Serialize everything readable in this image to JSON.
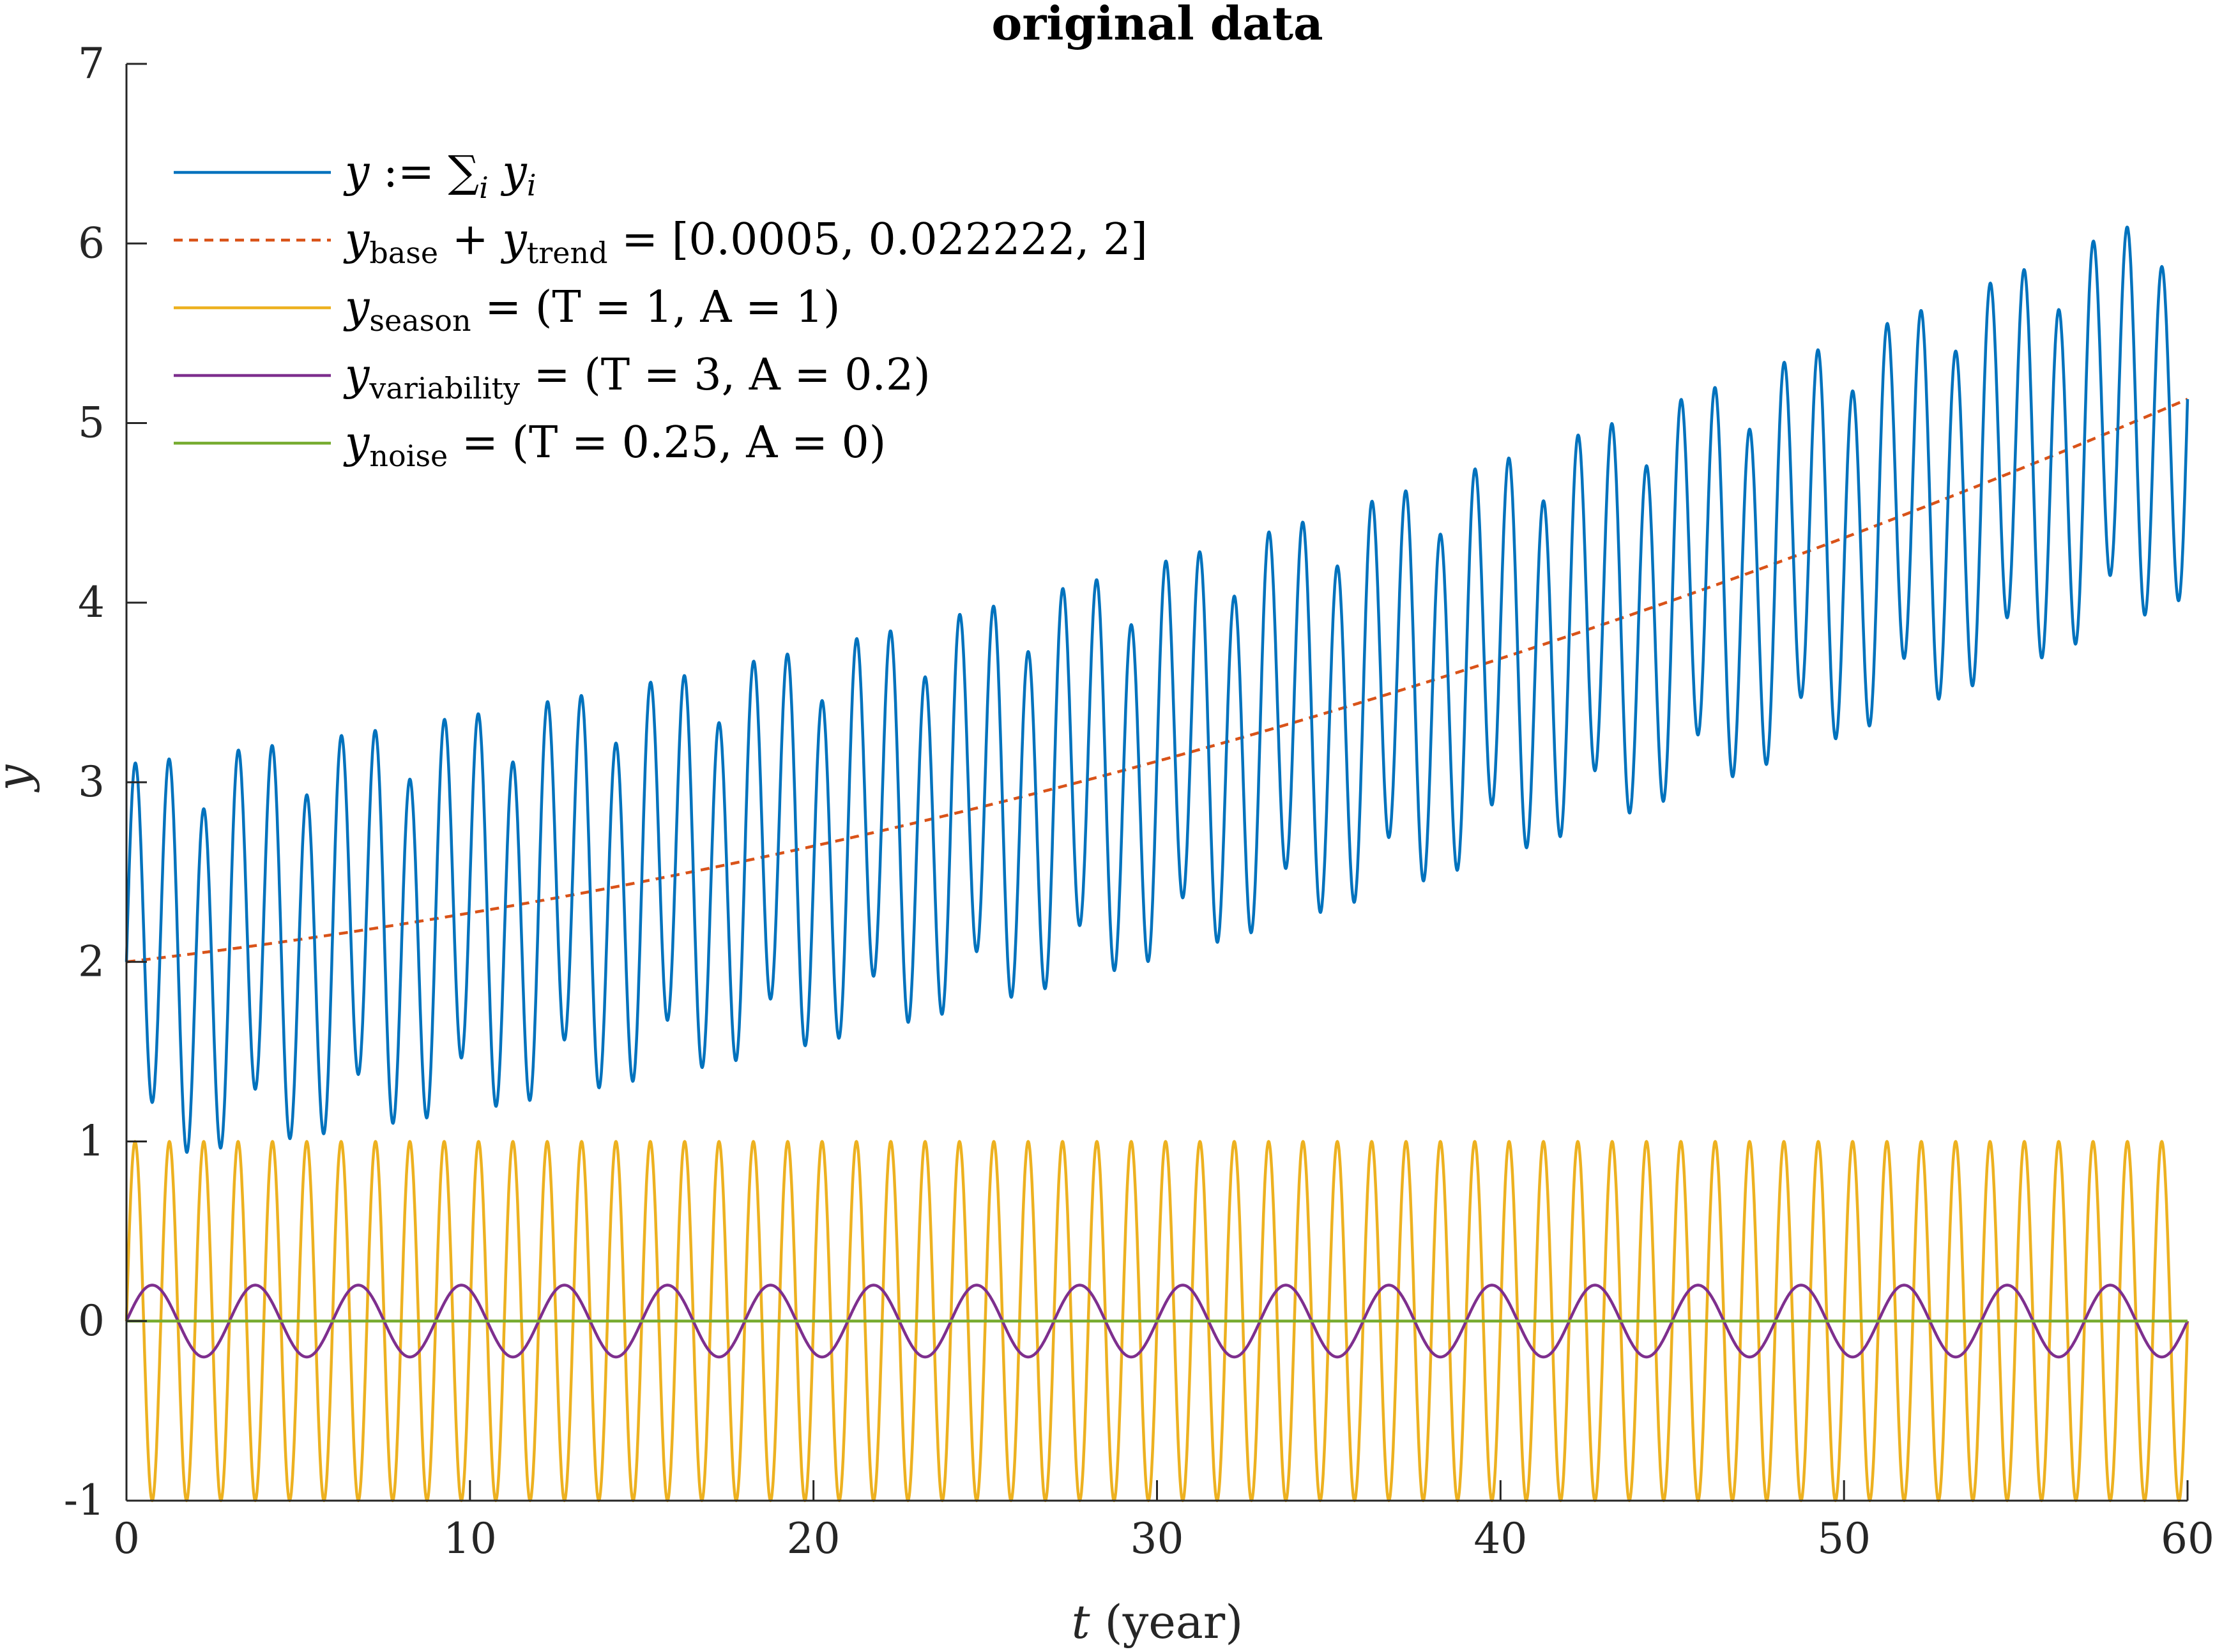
{
  "chart_data": {
    "type": "line",
    "title": "original data",
    "xlabel": {
      "var": "t",
      "rest": " (year)"
    },
    "ylabel": "y",
    "xlim": [
      0,
      60
    ],
    "ylim": [
      -1,
      7
    ],
    "xticks": [
      0,
      10,
      20,
      30,
      40,
      50,
      60
    ],
    "xtick_labels": [
      "0",
      "10",
      "20",
      "30",
      "40",
      "50",
      "60"
    ],
    "yticks": [
      -1,
      0,
      1,
      2,
      3,
      4,
      5,
      6,
      7
    ],
    "ytick_labels": [
      "-1",
      "0",
      "1",
      "2",
      "3",
      "4",
      "5",
      "6",
      "7"
    ],
    "grid": false,
    "legend_position": "top-left",
    "base_trend": {
      "a": 0.0005,
      "b": 0.022222,
      "c": 2
    },
    "season": {
      "T": 1,
      "A": 1
    },
    "variability": {
      "T": 3,
      "A": 0.2
    },
    "noise": {
      "T": 0.25,
      "A": 0
    },
    "series": [
      {
        "key": "y_sum",
        "color": "#0072BD",
        "dash": "solid",
        "legend": {
          "v": "y",
          "op": " := ∑",
          "sumsub": "i",
          "v2": " y",
          "v2sub": "i"
        }
      },
      {
        "key": "y_trend",
        "color": "#D95319",
        "dash": "dashed",
        "legend": {
          "v": "y",
          "sub": "base",
          "mid": " + ",
          "v2": "y",
          "v2sub": "trend",
          "rest": " = [0.0005, 0.022222, 2]"
        }
      },
      {
        "key": "y_season",
        "color": "#EDB120",
        "dash": "solid",
        "legend": {
          "v": "y",
          "sub": "season",
          "rest": " = (T = 1, A = 1)"
        }
      },
      {
        "key": "y_variability",
        "color": "#7E2F8E",
        "dash": "solid",
        "legend": {
          "v": "y",
          "sub": "variability",
          "rest": " = (T = 3, A = 0.2)"
        }
      },
      {
        "key": "y_noise",
        "color": "#77AC30",
        "dash": "solid",
        "legend": {
          "v": "y",
          "sub": "noise",
          "rest": " = (T = 0.25, A = 0)"
        }
      }
    ]
  }
}
